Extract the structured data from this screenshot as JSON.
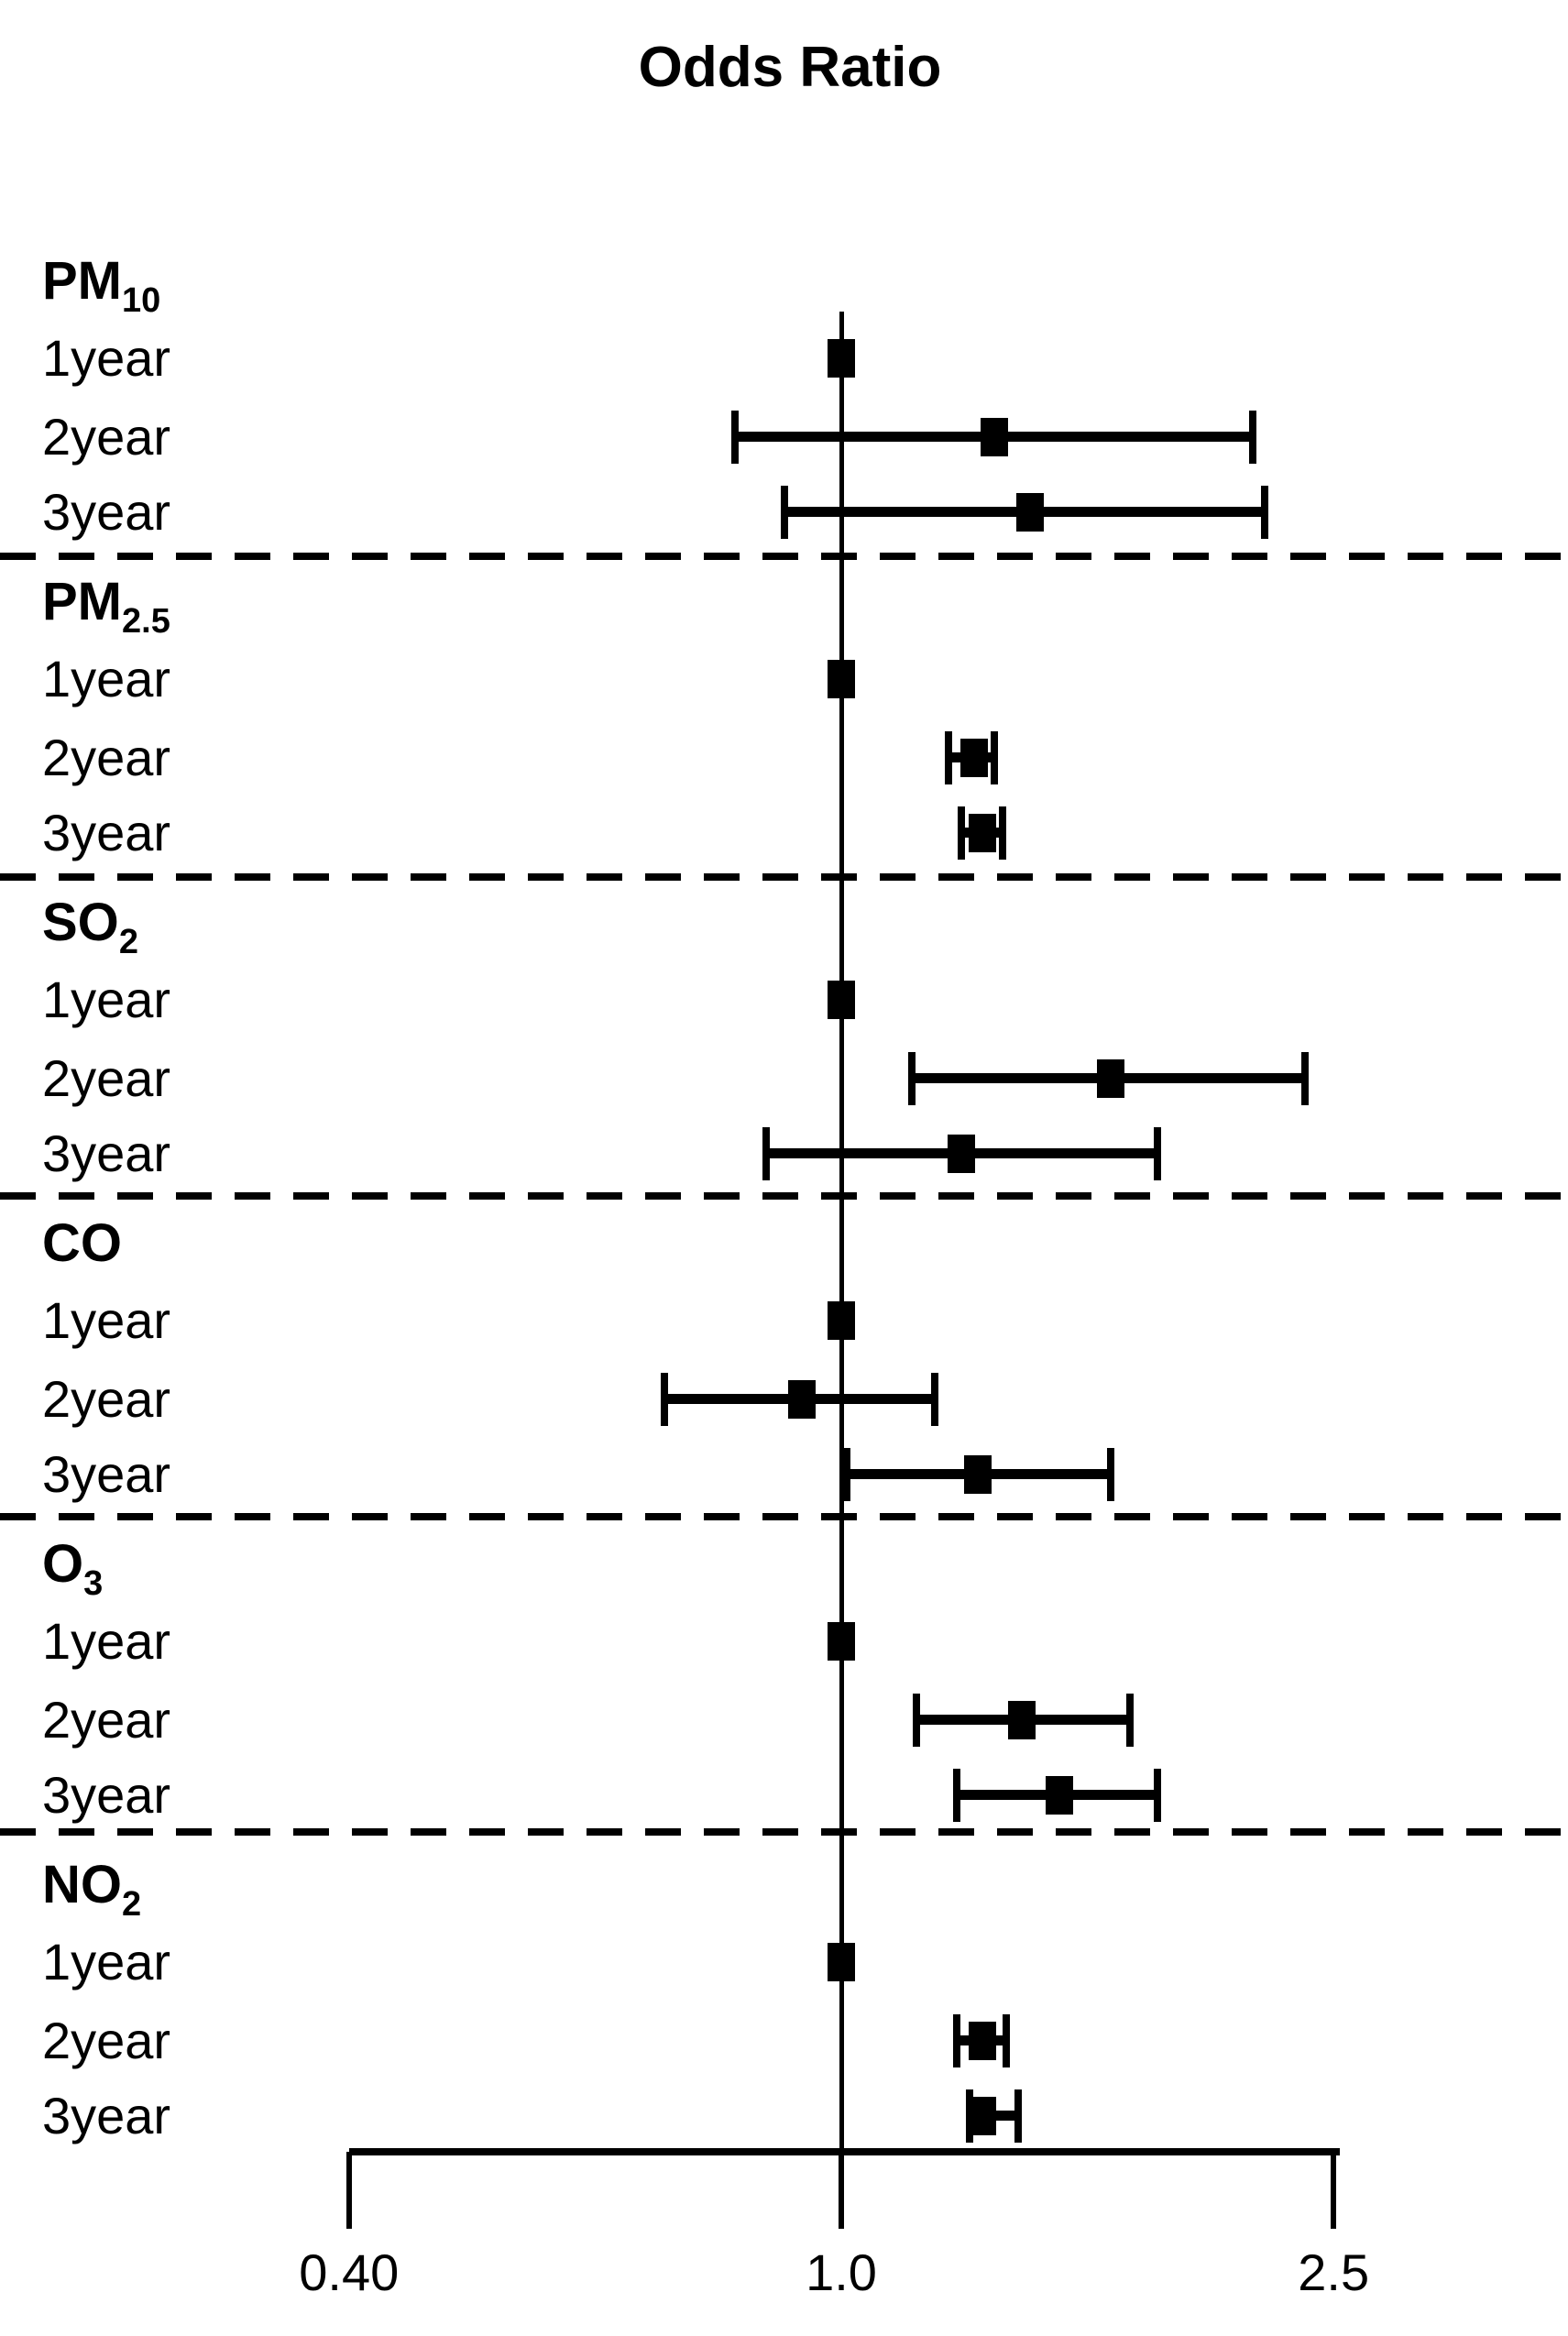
{
  "chart_data": {
    "type": "forest",
    "title": "Odds Ratio",
    "x_scale": "log10",
    "xlim": [
      0.4,
      2.5
    ],
    "grid": false,
    "reference_line": 1.0,
    "x_ticks": [
      {
        "value": 0.4,
        "label": "0.40"
      },
      {
        "value": 1.0,
        "label": "1.0"
      },
      {
        "value": 2.5,
        "label": "2.5"
      }
    ],
    "groups": [
      {
        "label": "PM",
        "subscript": "10",
        "rows": [
          {
            "label": "1year",
            "or": 1.0,
            "lo": 1.0,
            "hi": 1.0
          },
          {
            "label": "2year",
            "or": 1.33,
            "lo": 0.82,
            "hi": 2.15
          },
          {
            "label": "3year",
            "or": 1.42,
            "lo": 0.9,
            "hi": 2.2
          }
        ]
      },
      {
        "label": "PM",
        "subscript": "2.5",
        "rows": [
          {
            "label": "1year",
            "or": 1.0,
            "lo": 1.0,
            "hi": 1.0
          },
          {
            "label": "2year",
            "or": 1.28,
            "lo": 1.22,
            "hi": 1.33
          },
          {
            "label": "3year",
            "or": 1.3,
            "lo": 1.25,
            "hi": 1.35
          }
        ]
      },
      {
        "label": "SO",
        "subscript": "2",
        "rows": [
          {
            "label": "1year",
            "or": 1.0,
            "lo": 1.0,
            "hi": 1.0
          },
          {
            "label": "2year",
            "or": 1.65,
            "lo": 1.14,
            "hi": 2.37
          },
          {
            "label": "3year",
            "or": 1.25,
            "lo": 0.87,
            "hi": 1.8
          }
        ]
      },
      {
        "label": "CO",
        "subscript": "",
        "rows": [
          {
            "label": "1year",
            "or": 1.0,
            "lo": 1.0,
            "hi": 1.0
          },
          {
            "label": "2year",
            "or": 0.93,
            "lo": 0.72,
            "hi": 1.19
          },
          {
            "label": "3year",
            "or": 1.29,
            "lo": 1.01,
            "hi": 1.65
          }
        ]
      },
      {
        "label": "O",
        "subscript": "3",
        "rows": [
          {
            "label": "1year",
            "or": 1.0,
            "lo": 1.0,
            "hi": 1.0
          },
          {
            "label": "2year",
            "or": 1.4,
            "lo": 1.15,
            "hi": 1.71
          },
          {
            "label": "3year",
            "or": 1.5,
            "lo": 1.24,
            "hi": 1.8
          }
        ]
      },
      {
        "label": "NO",
        "subscript": "2",
        "rows": [
          {
            "label": "1year",
            "or": 1.0,
            "lo": 1.0,
            "hi": 1.0
          },
          {
            "label": "2year",
            "or": 1.3,
            "lo": 1.24,
            "hi": 1.36
          },
          {
            "label": "3year",
            "or": 1.3,
            "lo": 1.27,
            "hi": 1.39
          }
        ]
      }
    ]
  }
}
